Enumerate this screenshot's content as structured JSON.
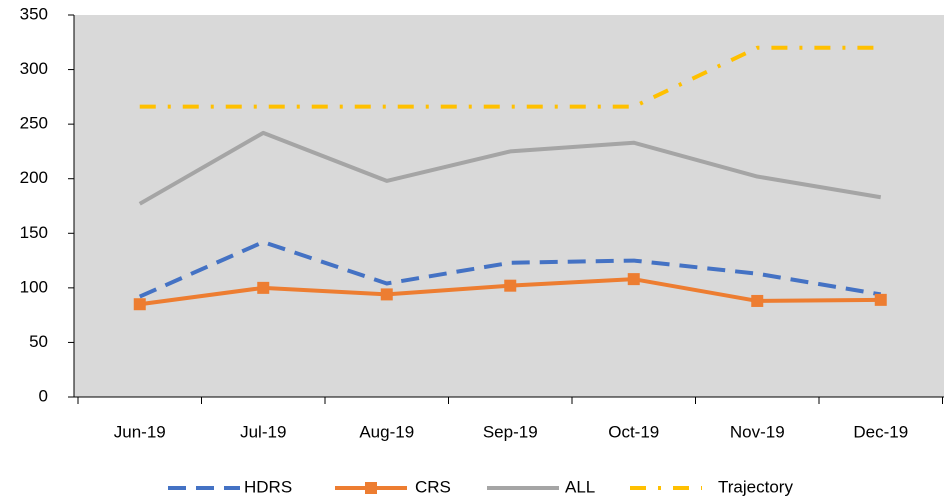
{
  "chart_data": {
    "type": "line",
    "categories": [
      "Jun-19",
      "Jul-19",
      "Aug-19",
      "Sep-19",
      "Oct-19",
      "Nov-19",
      "Dec-19"
    ],
    "series": [
      {
        "name": "HDRS",
        "color": "#4472c4",
        "values": [
          92,
          142,
          104,
          123,
          125,
          113,
          94
        ]
      },
      {
        "name": "CRS",
        "color": "#ed7d31",
        "values": [
          85,
          100,
          94,
          102,
          108,
          88,
          89
        ]
      },
      {
        "name": "ALL",
        "color": "#a5a5a5",
        "values": [
          177,
          242,
          198,
          225,
          233,
          202,
          183
        ]
      },
      {
        "name": "Trajectory",
        "color": "#ffc000",
        "values": [
          266,
          266,
          266,
          266,
          266,
          320,
          320
        ]
      }
    ],
    "ylim": [
      0,
      350
    ],
    "yticks": [
      0,
      50,
      100,
      150,
      200,
      250,
      300,
      350
    ]
  }
}
